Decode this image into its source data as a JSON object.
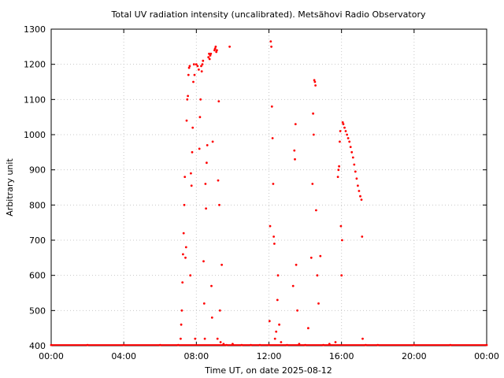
{
  "chart_data": {
    "type": "scatter",
    "title": "Total UV radiation intensity (uncalibrated). Metsähovi Radio Observatory",
    "xlabel": "Time UT, on date 2025-08-12",
    "ylabel": "Arbitrary unit",
    "xlim": [
      "00:00",
      "24:00"
    ],
    "ylim": [
      400,
      1300
    ],
    "x_ticks": [
      "00:00",
      "04:00",
      "08:00",
      "12:00",
      "16:00",
      "20:00",
      "00:00"
    ],
    "y_ticks": [
      400,
      500,
      600,
      700,
      800,
      900,
      1000,
      1100,
      1200,
      1300
    ],
    "grid": true,
    "marker_color": "#ff0000",
    "series": [
      {
        "points": [
          [
            "00:00",
            402
          ],
          [
            "02:00",
            402
          ],
          [
            "04:00",
            402
          ],
          [
            "06:00",
            402
          ],
          [
            "07:00",
            402
          ],
          [
            "07:08",
            420
          ],
          [
            "07:10",
            460
          ],
          [
            "07:12",
            500
          ],
          [
            "07:14",
            580
          ],
          [
            "07:16",
            660
          ],
          [
            "07:18",
            720
          ],
          [
            "07:20",
            800
          ],
          [
            "07:22",
            880
          ],
          [
            "07:24",
            650
          ],
          [
            "07:26",
            680
          ],
          [
            "07:28",
            1040
          ],
          [
            "07:30",
            1100
          ],
          [
            "07:32",
            1110
          ],
          [
            "07:34",
            1170
          ],
          [
            "07:36",
            1190
          ],
          [
            "07:38",
            1195
          ],
          [
            "07:40",
            600
          ],
          [
            "07:42",
            890
          ],
          [
            "07:44",
            855
          ],
          [
            "07:46",
            950
          ],
          [
            "07:48",
            1020
          ],
          [
            "07:50",
            1150
          ],
          [
            "07:52",
            1200
          ],
          [
            "07:54",
            1170
          ],
          [
            "07:56",
            420
          ],
          [
            "08:00",
            1200
          ],
          [
            "08:04",
            1195
          ],
          [
            "08:08",
            1185
          ],
          [
            "08:10",
            960
          ],
          [
            "08:12",
            1050
          ],
          [
            "08:14",
            1100
          ],
          [
            "08:16",
            1195
          ],
          [
            "08:18",
            1180
          ],
          [
            "08:20",
            1200
          ],
          [
            "08:22",
            1210
          ],
          [
            "08:24",
            640
          ],
          [
            "08:26",
            520
          ],
          [
            "08:28",
            420
          ],
          [
            "08:30",
            860
          ],
          [
            "08:32",
            790
          ],
          [
            "08:34",
            920
          ],
          [
            "08:36",
            970
          ],
          [
            "08:40",
            1220
          ],
          [
            "08:42",
            1230
          ],
          [
            "08:44",
            1215
          ],
          [
            "08:46",
            1225
          ],
          [
            "08:48",
            1230
          ],
          [
            "08:50",
            570
          ],
          [
            "08:52",
            480
          ],
          [
            "08:54",
            980
          ],
          [
            "09:00",
            1240
          ],
          [
            "09:02",
            1245
          ],
          [
            "09:04",
            1250
          ],
          [
            "09:06",
            1235
          ],
          [
            "09:08",
            1240
          ],
          [
            "09:10",
            420
          ],
          [
            "09:12",
            870
          ],
          [
            "09:14",
            1095
          ],
          [
            "09:16",
            800
          ],
          [
            "09:18",
            500
          ],
          [
            "09:20",
            410
          ],
          [
            "09:24",
            630
          ],
          [
            "09:30",
            405
          ],
          [
            "09:40",
            402
          ],
          [
            "09:50",
            1250
          ],
          [
            "10:00",
            405
          ],
          [
            "10:30",
            402
          ],
          [
            "11:00",
            402
          ],
          [
            "11:30",
            402
          ],
          [
            "12:00",
            402
          ],
          [
            "12:02",
            470
          ],
          [
            "12:04",
            740
          ],
          [
            "12:06",
            1265
          ],
          [
            "12:08",
            1250
          ],
          [
            "12:10",
            1080
          ],
          [
            "12:12",
            990
          ],
          [
            "12:14",
            860
          ],
          [
            "12:16",
            710
          ],
          [
            "12:18",
            690
          ],
          [
            "12:20",
            420
          ],
          [
            "12:24",
            440
          ],
          [
            "12:28",
            530
          ],
          [
            "12:30",
            600
          ],
          [
            "12:34",
            460
          ],
          [
            "12:40",
            410
          ],
          [
            "13:00",
            402
          ],
          [
            "13:20",
            570
          ],
          [
            "13:24",
            955
          ],
          [
            "13:26",
            930
          ],
          [
            "13:28",
            1030
          ],
          [
            "13:30",
            630
          ],
          [
            "13:34",
            500
          ],
          [
            "13:40",
            405
          ],
          [
            "14:00",
            402
          ],
          [
            "14:10",
            450
          ],
          [
            "14:20",
            650
          ],
          [
            "14:24",
            860
          ],
          [
            "14:26",
            1060
          ],
          [
            "14:28",
            1000
          ],
          [
            "14:30",
            1155
          ],
          [
            "14:32",
            1150
          ],
          [
            "14:34",
            1140
          ],
          [
            "14:36",
            785
          ],
          [
            "14:40",
            600
          ],
          [
            "14:44",
            520
          ],
          [
            "14:50",
            655
          ],
          [
            "15:00",
            402
          ],
          [
            "15:20",
            405
          ],
          [
            "15:40",
            410
          ],
          [
            "15:48",
            880
          ],
          [
            "15:50",
            900
          ],
          [
            "15:52",
            910
          ],
          [
            "15:54",
            980
          ],
          [
            "15:56",
            1010
          ],
          [
            "15:58",
            740
          ],
          [
            "16:00",
            600
          ],
          [
            "16:02",
            700
          ],
          [
            "16:04",
            1035
          ],
          [
            "16:06",
            1030
          ],
          [
            "16:10",
            1020
          ],
          [
            "16:14",
            1010
          ],
          [
            "16:18",
            1000
          ],
          [
            "16:22",
            990
          ],
          [
            "16:26",
            980
          ],
          [
            "16:30",
            965
          ],
          [
            "16:34",
            950
          ],
          [
            "16:38",
            935
          ],
          [
            "16:42",
            915
          ],
          [
            "16:46",
            895
          ],
          [
            "16:50",
            875
          ],
          [
            "16:54",
            855
          ],
          [
            "16:58",
            840
          ],
          [
            "17:02",
            825
          ],
          [
            "17:06",
            815
          ],
          [
            "17:08",
            710
          ],
          [
            "17:10",
            420
          ],
          [
            "17:20",
            402
          ],
          [
            "18:00",
            402
          ],
          [
            "20:00",
            402
          ],
          [
            "22:00",
            402
          ],
          [
            "24:00",
            402
          ]
        ]
      }
    ]
  }
}
